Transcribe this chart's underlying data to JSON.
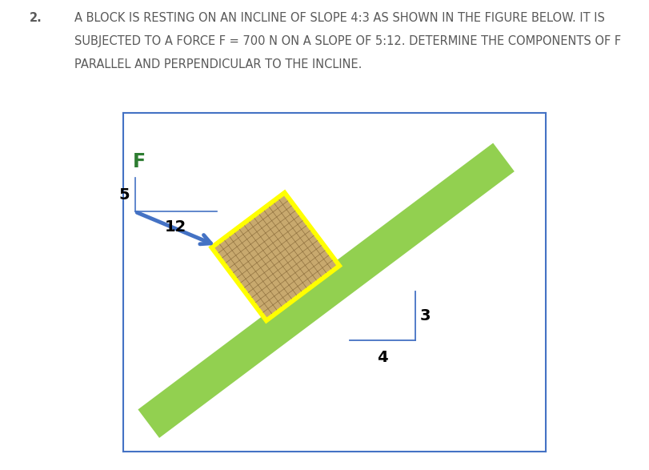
{
  "title_number": "2.",
  "title_text_line1": "A BLOCK IS RESTING ON AN INCLINE OF SLOPE 4:3 AS SHOWN IN THE FIGURE BELOW. IT IS",
  "title_text_line2": "SUBJECTED TO A FORCE F = 700 N ON A SLOPE OF 5:12. DETERMINE THE COMPONENTS OF F",
  "title_text_line3": "PARALLEL AND PERPENDICULAR TO THE INCLINE.",
  "box_border_color": "#4472c4",
  "incline_color": "#92d050",
  "block_fill_color": "#c8a96e",
  "block_border_color": "#ffff00",
  "force_arrow_color": "#4472c4",
  "slope_line_color": "#4472c4",
  "force_label": "F",
  "force_label_color": "#2e7d32",
  "slope_label_3": "3",
  "slope_label_4": "4",
  "slope_label_5": "5",
  "slope_label_12": "12",
  "text_color": "#595959",
  "font_size_title": 10.5,
  "font_size_labels": 14
}
